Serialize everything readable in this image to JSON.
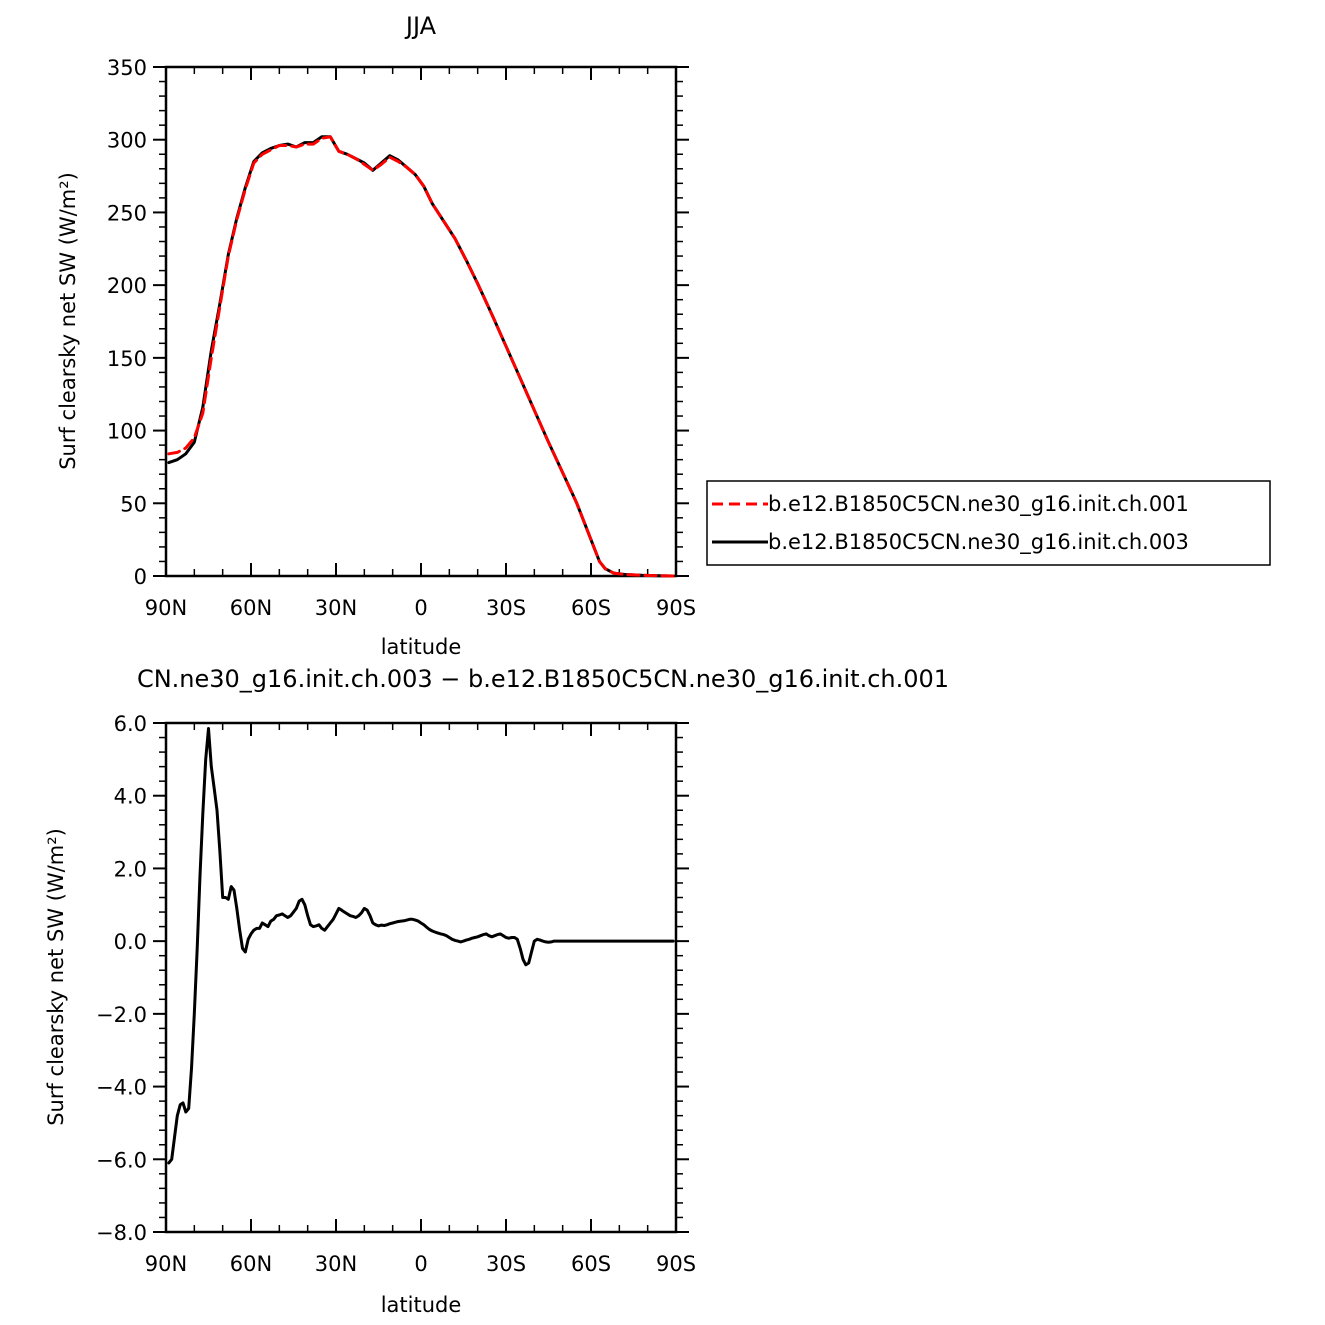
{
  "chart_data": [
    {
      "type": "line",
      "title": "JJA",
      "xlabel": "latitude",
      "ylabel": "Surf clearsky net SW (W/m²)",
      "xlim": [
        90,
        -90
      ],
      "ylim": [
        0,
        350
      ],
      "x_ticks": [
        90,
        60,
        30,
        0,
        -30,
        -60,
        -90
      ],
      "x_tick_labels": [
        "90N",
        "60N",
        "30N",
        "0",
        "30S",
        "60S",
        "90S"
      ],
      "y_ticks": [
        0,
        50,
        100,
        150,
        200,
        250,
        300,
        350
      ],
      "y_tick_labels": [
        "0",
        "50",
        "100",
        "150",
        "200",
        "250",
        "300",
        "350"
      ],
      "legend_position": "right",
      "series": [
        {
          "name": "b.e12.B1850C5CN.ne30_g16.init.ch.001",
          "color": "#ff0000",
          "dash": "dashed",
          "x": [
            89,
            86,
            83,
            80,
            77,
            74,
            71,
            68,
            65,
            62,
            59,
            56,
            53,
            50,
            47,
            44,
            41,
            38,
            35,
            32,
            29,
            26,
            23,
            20,
            17,
            14,
            11,
            8,
            5,
            2,
            -1,
            -4,
            -8,
            -12,
            -16,
            -20,
            -25,
            -30,
            -35,
            -40,
            -45,
            -50,
            -55,
            -58,
            -61,
            -63,
            -65,
            -68,
            -72,
            -78,
            -84,
            -89
          ],
          "y": [
            84,
            85,
            88,
            95,
            112,
            150,
            185,
            220,
            245,
            266,
            284,
            290,
            293,
            296,
            296,
            295,
            297,
            297,
            301,
            302,
            292,
            290,
            287,
            283,
            279,
            283,
            288,
            285,
            281,
            276,
            268,
            256,
            244,
            232,
            217,
            201,
            180,
            158,
            136,
            114,
            92,
            71,
            50,
            35,
            20,
            10,
            5,
            2,
            1,
            0.5,
            0.2,
            0
          ],
          "values": [
            84,
            85,
            88,
            95,
            112,
            150,
            185,
            220,
            245,
            266,
            284,
            290,
            293,
            296,
            296,
            295,
            297,
            297,
            301,
            302,
            292,
            290,
            287,
            283,
            279,
            283,
            288,
            285,
            281,
            276,
            268,
            256,
            244,
            232,
            217,
            201,
            180,
            158,
            136,
            114,
            92,
            71,
            50,
            35,
            20,
            10,
            5,
            2,
            1,
            0.5,
            0.2,
            0
          ]
        },
        {
          "name": "b.e12.B1850C5CN.ne30_g16.init.ch.003",
          "color": "#000000",
          "dash": "solid",
          "x": [
            89,
            86,
            83,
            80,
            77,
            74,
            71,
            68,
            65,
            62,
            59,
            56,
            53,
            50,
            47,
            44,
            41,
            38,
            35,
            32,
            29,
            26,
            23,
            20,
            17,
            14,
            11,
            8,
            5,
            2,
            -1,
            -4,
            -8,
            -12,
            -16,
            -20,
            -25,
            -30,
            -35,
            -40,
            -45,
            -50,
            -55,
            -58,
            -61,
            -63,
            -65,
            -68,
            -72,
            -78,
            -84,
            -89
          ],
          "y": [
            78,
            80,
            84,
            92,
            116,
            155,
            187,
            221,
            246,
            267,
            285,
            291,
            294,
            296,
            297,
            295,
            298,
            298,
            302,
            302,
            292,
            290,
            287,
            284,
            279,
            284,
            289,
            286,
            281,
            276,
            268,
            256,
            244,
            232,
            217,
            201,
            180,
            158,
            136,
            114,
            92,
            71,
            50,
            35,
            20,
            10,
            5,
            2,
            1,
            0.5,
            0.2,
            0
          ],
          "values": [
            78,
            80,
            84,
            92,
            116,
            155,
            187,
            221,
            246,
            267,
            285,
            291,
            294,
            296,
            297,
            295,
            298,
            298,
            302,
            302,
            292,
            290,
            287,
            284,
            279,
            284,
            289,
            286,
            281,
            276,
            268,
            256,
            244,
            232,
            217,
            201,
            180,
            158,
            136,
            114,
            92,
            71,
            50,
            35,
            20,
            10,
            5,
            2,
            1,
            0.5,
            0.2,
            0
          ]
        }
      ]
    },
    {
      "type": "line",
      "title": "CN.ne30_g16.init.ch.003 − b.e12.B1850C5CN.ne30_g16.init.ch.001",
      "xlabel": "latitude",
      "ylabel": "Surf clearsky net SW (W/m²)",
      "xlim": [
        90,
        -90
      ],
      "ylim": [
        -8,
        6
      ],
      "x_ticks": [
        90,
        60,
        30,
        0,
        -30,
        -60,
        -90
      ],
      "x_tick_labels": [
        "90N",
        "60N",
        "30N",
        "0",
        "30S",
        "60S",
        "90S"
      ],
      "y_ticks": [
        -8,
        -6,
        -4,
        -2,
        0,
        2,
        4,
        6
      ],
      "y_tick_labels": [
        "−8.0",
        "−6.0",
        "−4.0",
        "−2.0",
        "0.0",
        "2.0",
        "4.0",
        "6.0"
      ],
      "series": [
        {
          "color": "#000000",
          "dash": "solid",
          "x": [
            89,
            88,
            87,
            86,
            85,
            84,
            83,
            82,
            81,
            80,
            79,
            78,
            77,
            76,
            75,
            74,
            73,
            72,
            71,
            70,
            69,
            68,
            67,
            66,
            65,
            64,
            63,
            62,
            61,
            60,
            59,
            58,
            57,
            56,
            55,
            54,
            53,
            52,
            51,
            50,
            49,
            48,
            47,
            46,
            45,
            44,
            43,
            42,
            41,
            40,
            39,
            38,
            37,
            36,
            35,
            34,
            33,
            32,
            31,
            30,
            29,
            28,
            27,
            26,
            25,
            24,
            23,
            22,
            21,
            20,
            19,
            18,
            17,
            16,
            15,
            14,
            13,
            12,
            11,
            10,
            9,
            8,
            7,
            6,
            5,
            4,
            3,
            2,
            1,
            0,
            -1,
            -2,
            -3,
            -4,
            -5,
            -6,
            -7,
            -8,
            -9,
            -10,
            -11,
            -12,
            -13,
            -14,
            -15,
            -16,
            -17,
            -18,
            -19,
            -20,
            -21,
            -22,
            -23,
            -24,
            -25,
            -26,
            -27,
            -28,
            -29,
            -30,
            -31,
            -32,
            -33,
            -34,
            -35,
            -36,
            -37,
            -38,
            -39,
            -40,
            -41,
            -42,
            -43,
            -44,
            -45,
            -46,
            -47,
            -48,
            -49,
            -50,
            -51,
            -52,
            -53,
            -54,
            -55,
            -56,
            -57,
            -58,
            -59,
            -60,
            -61,
            -62,
            -63,
            -64,
            -65,
            -66,
            -68,
            -70,
            -72,
            -75,
            -80,
            -85,
            -89
          ],
          "y": [
            -6.1,
            -6.0,
            -5.4,
            -4.8,
            -4.5,
            -4.45,
            -4.7,
            -4.6,
            -3.5,
            -2.0,
            -0.2,
            1.8,
            3.5,
            5.0,
            5.85,
            4.8,
            4.2,
            3.6,
            2.5,
            1.2,
            1.2,
            1.15,
            1.5,
            1.4,
            0.9,
            0.3,
            -0.2,
            -0.3,
            0.05,
            0.2,
            0.3,
            0.35,
            0.35,
            0.5,
            0.45,
            0.4,
            0.55,
            0.6,
            0.7,
            0.72,
            0.75,
            0.7,
            0.65,
            0.7,
            0.8,
            0.9,
            1.1,
            1.15,
            1.0,
            0.7,
            0.45,
            0.4,
            0.42,
            0.45,
            0.35,
            0.3,
            0.4,
            0.5,
            0.6,
            0.75,
            0.9,
            0.85,
            0.8,
            0.75,
            0.7,
            0.68,
            0.65,
            0.7,
            0.78,
            0.9,
            0.85,
            0.7,
            0.5,
            0.45,
            0.42,
            0.44,
            0.43,
            0.45,
            0.48,
            0.5,
            0.52,
            0.54,
            0.55,
            0.56,
            0.58,
            0.6,
            0.6,
            0.58,
            0.55,
            0.5,
            0.45,
            0.38,
            0.32,
            0.28,
            0.25,
            0.22,
            0.2,
            0.18,
            0.15,
            0.1,
            0.05,
            0.02,
            0.0,
            -0.02,
            0.0,
            0.03,
            0.05,
            0.08,
            0.1,
            0.12,
            0.15,
            0.18,
            0.2,
            0.15,
            0.12,
            0.15,
            0.18,
            0.2,
            0.15,
            0.1,
            0.08,
            0.1,
            0.1,
            0.05,
            -0.2,
            -0.5,
            -0.65,
            -0.6,
            -0.3,
            0.0,
            0.05,
            0.03,
            0.0,
            -0.02,
            -0.03,
            -0.02,
            0.0,
            0.0,
            0.0,
            0.0,
            0.0,
            0.0,
            0.0,
            0.0,
            0.0,
            0.0,
            0.0,
            0.0,
            0.0,
            0.0,
            0.0,
            0.0,
            0.0,
            0.0,
            0.0,
            0.0,
            0.0,
            0.0,
            0.0,
            0.0,
            0.0,
            0.0,
            0.0
          ],
          "values": [
            -6.1,
            -6.0,
            -5.4,
            -4.8,
            -4.5,
            -4.45,
            -4.7,
            -4.6,
            -3.5,
            -2.0,
            -0.2,
            1.8,
            3.5,
            5.0,
            5.85,
            4.8,
            4.2,
            3.6,
            2.5,
            1.2,
            1.2,
            1.15,
            1.5,
            1.4,
            0.9,
            0.3,
            -0.2,
            -0.3,
            0.05,
            0.2,
            0.3,
            0.35,
            0.35,
            0.5,
            0.45,
            0.4,
            0.55,
            0.6,
            0.7,
            0.72,
            0.75,
            0.7,
            0.65,
            0.7,
            0.8,
            0.9,
            1.1,
            1.15,
            1.0,
            0.7,
            0.45,
            0.4,
            0.42,
            0.45,
            0.35,
            0.3,
            0.4,
            0.5,
            0.6,
            0.75,
            0.9,
            0.85,
            0.8,
            0.75,
            0.7,
            0.68,
            0.65,
            0.7,
            0.78,
            0.9,
            0.85,
            0.7,
            0.5,
            0.45,
            0.42,
            0.44,
            0.43,
            0.45,
            0.48,
            0.5,
            0.52,
            0.54,
            0.55,
            0.56,
            0.58,
            0.6,
            0.6,
            0.58,
            0.55,
            0.5,
            0.45,
            0.38,
            0.32,
            0.28,
            0.25,
            0.22,
            0.2,
            0.18,
            0.15,
            0.1,
            0.05,
            0.02,
            0.0,
            -0.02,
            0.0,
            0.03,
            0.05,
            0.08,
            0.1,
            0.12,
            0.15,
            0.18,
            0.2,
            0.15,
            0.12,
            0.15,
            0.18,
            0.2,
            0.15,
            0.1,
            0.08,
            0.1,
            0.1,
            0.05,
            -0.2,
            -0.5,
            -0.65,
            -0.6,
            -0.3,
            0.0,
            0.05,
            0.03,
            0.0,
            -0.02,
            -0.03,
            -0.02,
            0.0,
            0.0,
            0.0,
            0.0,
            0.0,
            0.0,
            0.0,
            0.0,
            0.0,
            0.0,
            0.0,
            0.0,
            0.0,
            0.0,
            0.0,
            0.0,
            0.0,
            0.0,
            0.0,
            0.0,
            0.0,
            0.0,
            0.0,
            0.0,
            0.0,
            0.0,
            0.0
          ]
        }
      ]
    }
  ]
}
